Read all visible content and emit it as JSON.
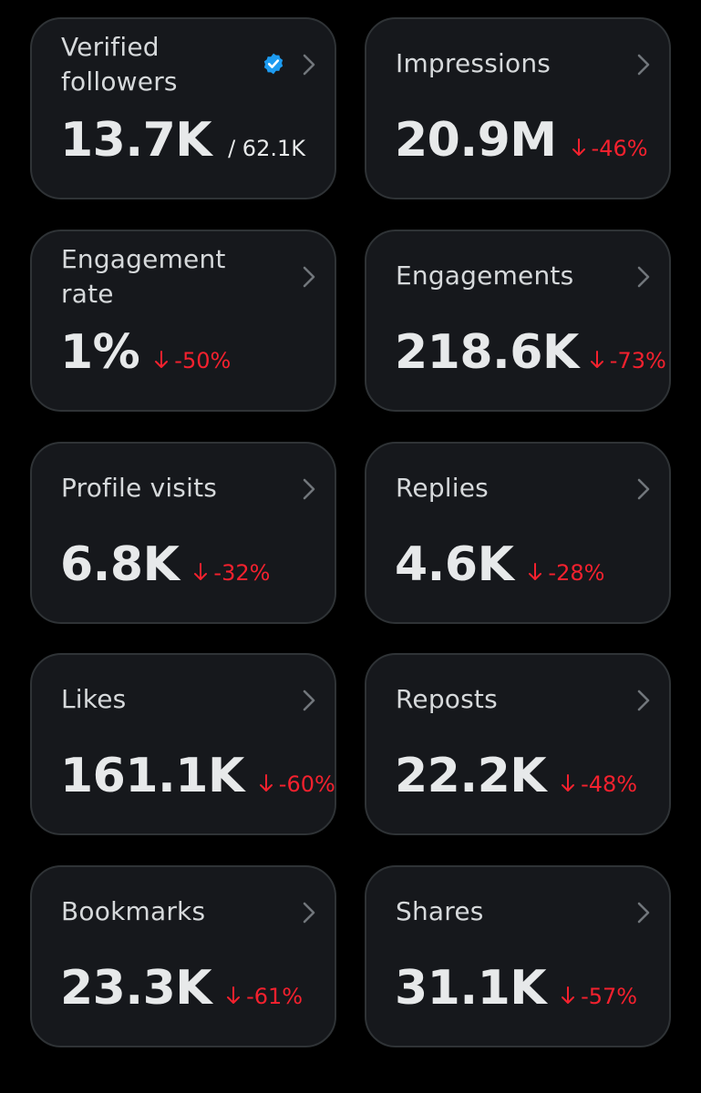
{
  "colors": {
    "background": "#000000",
    "card_background": "#16181c",
    "card_border": "#2f3336",
    "label_text": "#d6d9db",
    "value_text": "#e7e9ea",
    "negative_change": "#f4212e",
    "verified_badge": "#1d9bf0",
    "chevron": "#71767b"
  },
  "cards": [
    {
      "label": "Verified followers",
      "value": "13.7K",
      "total": "/ 62.1K",
      "icon": "verified-badge-icon",
      "chevron": "chevron-right-icon"
    },
    {
      "label": "Impressions",
      "value": "20.9M",
      "change": "-46%",
      "change_icon": "arrow-down-icon",
      "chevron": "chevron-right-icon"
    },
    {
      "label": "Engagement rate",
      "value": "1%",
      "change": "-50%",
      "change_icon": "arrow-down-icon",
      "chevron": "chevron-right-icon"
    },
    {
      "label": "Engagements",
      "value": "218.6K",
      "change": "-73%",
      "change_icon": "arrow-down-icon",
      "chevron": "chevron-right-icon"
    },
    {
      "label": "Profile visits",
      "value": "6.8K",
      "change": "-32%",
      "change_icon": "arrow-down-icon",
      "chevron": "chevron-right-icon"
    },
    {
      "label": "Replies",
      "value": "4.6K",
      "change": "-28%",
      "change_icon": "arrow-down-icon",
      "chevron": "chevron-right-icon"
    },
    {
      "label": "Likes",
      "value": "161.1K",
      "change": "-60%",
      "change_icon": "arrow-down-icon",
      "chevron": "chevron-right-icon"
    },
    {
      "label": "Reposts",
      "value": "22.2K",
      "change": "-48%",
      "change_icon": "arrow-down-icon",
      "chevron": "chevron-right-icon"
    },
    {
      "label": "Bookmarks",
      "value": "23.3K",
      "change": "-61%",
      "change_icon": "arrow-down-icon",
      "chevron": "chevron-right-icon"
    },
    {
      "label": "Shares",
      "value": "31.1K",
      "change": "-57%",
      "change_icon": "arrow-down-icon",
      "chevron": "chevron-right-icon"
    }
  ]
}
